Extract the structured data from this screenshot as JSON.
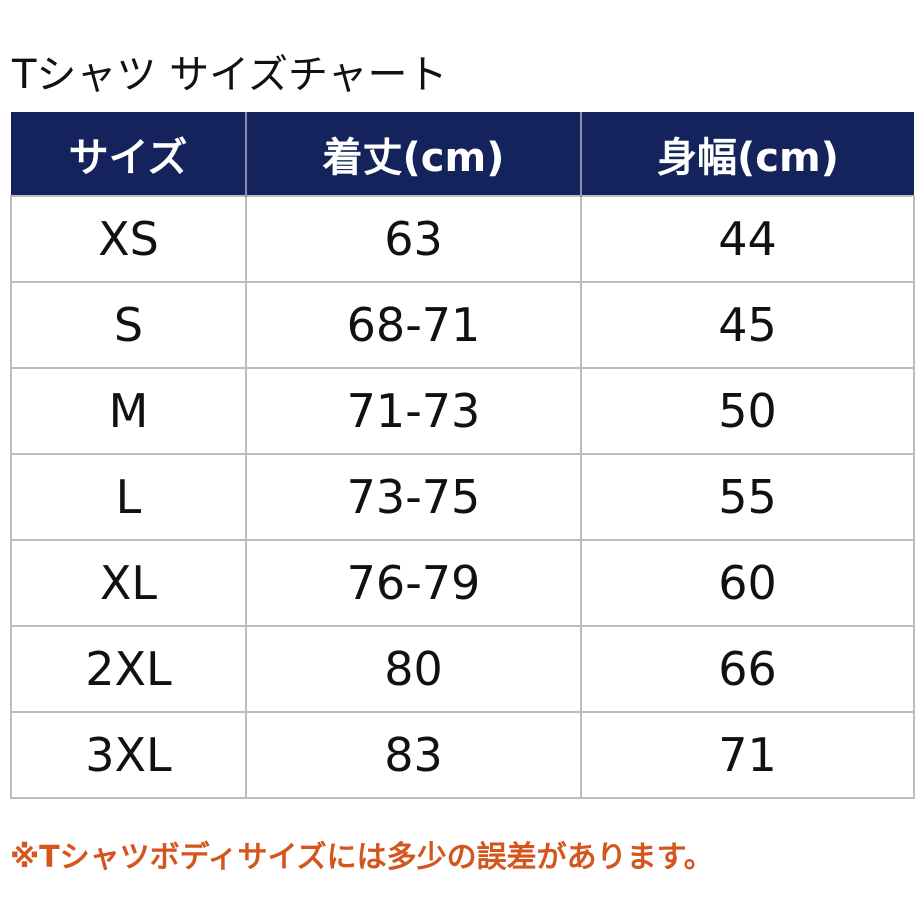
{
  "title": "Tシャツ サイズチャート",
  "table": {
    "header": [
      "サイズ",
      "着丈(cm)",
      "身幅(cm)"
    ],
    "rows": [
      [
        "XS",
        "63",
        "44"
      ],
      [
        "S",
        "68-71",
        "45"
      ],
      [
        "M",
        "71-73",
        "50"
      ],
      [
        "L",
        "73-75",
        "55"
      ],
      [
        "XL",
        "76-79",
        "60"
      ],
      [
        "2XL",
        "80",
        "66"
      ],
      [
        "3XL",
        "83",
        "71"
      ]
    ]
  },
  "note": "※Tシャツボディサイズには多少の誤差があります。"
}
